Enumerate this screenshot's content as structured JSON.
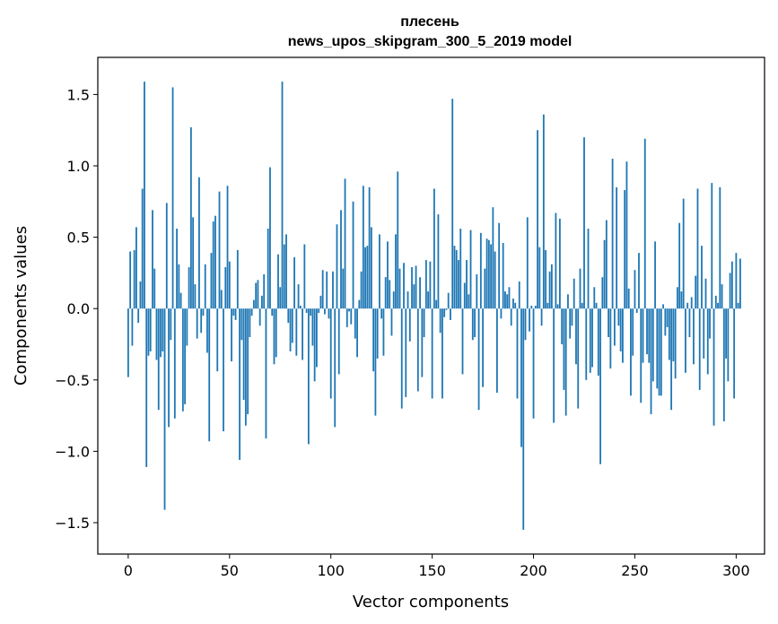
{
  "chart_data": {
    "type": "bar",
    "title": "плесень",
    "subtitle": "news_upos_skipgram_300_5_2019 model",
    "xlabel": "Vector components",
    "ylabel": "Components values",
    "xlim": [
      -15,
      314
    ],
    "ylim": [
      -1.72,
      1.76
    ],
    "x_ticks": [
      0,
      50,
      100,
      150,
      200,
      250,
      300
    ],
    "x_tick_labels": [
      "0",
      "50",
      "100",
      "150",
      "200",
      "250",
      "300"
    ],
    "y_ticks": [
      -1.5,
      -1.0,
      -0.5,
      0.0,
      0.5,
      1.0,
      1.5
    ],
    "y_tick_labels": [
      "−1.5",
      "−1.0",
      "−0.5",
      "0.0",
      "0.5",
      "1.0",
      "1.5"
    ],
    "grid": false,
    "bar_color": "#1f77b4",
    "values": [
      -0.48,
      0.4,
      -0.26,
      0.41,
      0.57,
      -0.1,
      0.19,
      0.84,
      1.59,
      -1.11,
      -0.33,
      -0.3,
      0.69,
      0.28,
      -0.36,
      -0.71,
      -0.34,
      -0.3,
      -1.41,
      0.74,
      -0.83,
      -0.22,
      1.55,
      -0.77,
      0.56,
      0.31,
      0.11,
      -0.72,
      -0.67,
      -0.26,
      0.29,
      1.27,
      0.64,
      0.17,
      -0.21,
      0.92,
      -0.17,
      -0.05,
      0.31,
      -0.31,
      -0.93,
      0.39,
      0.61,
      0.65,
      -0.44,
      0.82,
      0.13,
      -0.86,
      0.29,
      0.86,
      0.33,
      -0.37,
      -0.05,
      -0.08,
      0.41,
      -1.06,
      -0.22,
      -0.64,
      -0.82,
      -0.74,
      -0.2,
      -0.05,
      0.06,
      0.18,
      0.2,
      -0.12,
      0.09,
      0.24,
      -0.91,
      0.56,
      0.99,
      -0.05,
      -0.39,
      -0.34,
      0.38,
      0.15,
      1.59,
      0.45,
      0.52,
      -0.1,
      -0.3,
      -0.24,
      0.36,
      -0.33,
      0.17,
      0.02,
      -0.36,
      0.45,
      -0.03,
      -0.95,
      -0.05,
      -0.26,
      -0.51,
      -0.41,
      -0.03,
      0.09,
      0.27,
      -0.04,
      0.26,
      -0.07,
      -0.63,
      0.26,
      -0.83,
      0.59,
      -0.46,
      0.69,
      0.28,
      0.91,
      -0.13,
      -0.02,
      -0.11,
      0.75,
      -0.21,
      -0.34,
      0.06,
      0.26,
      0.86,
      0.43,
      0.44,
      0.85,
      0.57,
      -0.44,
      -0.75,
      -0.35,
      0.52,
      -0.07,
      -0.33,
      0.22,
      0.47,
      0.2,
      -0.19,
      0.12,
      0.52,
      0.96,
      0.28,
      -0.7,
      0.32,
      -0.62,
      0.12,
      -0.23,
      0.29,
      0.17,
      0.3,
      -0.58,
      0.22,
      -0.48,
      -0.2,
      0.34,
      0.12,
      0.33,
      -0.63,
      0.84,
      0.06,
      0.66,
      -0.17,
      -0.63,
      -0.06,
      -0.01,
      0.11,
      -0.08,
      1.47,
      0.44,
      0.41,
      0.34,
      0.56,
      -0.46,
      0.18,
      0.34,
      0.1,
      0.55,
      -0.22,
      -0.2,
      0.24,
      -0.71,
      0.53,
      -0.55,
      0.28,
      0.49,
      0.48,
      0.45,
      0.71,
      0.4,
      -0.59,
      0.6,
      -0.07,
      0.46,
      0.12,
      0.1,
      0.15,
      -0.12,
      0.07,
      0.04,
      -0.63,
      0.19,
      -0.97,
      -1.55,
      -0.22,
      0.64,
      -0.16,
      0.02,
      -0.77,
      0.02,
      1.25,
      0.43,
      -0.12,
      1.36,
      0.41,
      0.04,
      0.26,
      0.31,
      -0.8,
      0.67,
      0.03,
      0.63,
      -0.25,
      -0.57,
      -0.75,
      0.1,
      -0.21,
      -0.12,
      0.21,
      -0.39,
      -0.7,
      0.28,
      0.04,
      1.2,
      -0.5,
      0.56,
      -0.45,
      -0.41,
      0.15,
      0.04,
      -0.47,
      -1.09,
      0.22,
      0.48,
      0.62,
      -0.2,
      -0.42,
      1.05,
      -0.26,
      0.85,
      -0.12,
      -0.3,
      -0.38,
      0.83,
      1.03,
      0.14,
      -0.61,
      -0.33,
      0.27,
      -0.03,
      0.39,
      -0.66,
      -0.38,
      1.19,
      -0.32,
      -0.38,
      -0.74,
      -0.51,
      0.47,
      -0.56,
      -0.61,
      -0.61,
      0.03,
      -0.19,
      -0.13,
      -0.36,
      -0.71,
      -0.37,
      -0.49,
      0.15,
      0.6,
      0.12,
      0.77,
      -0.45,
      0.04,
      -0.2,
      0.08,
      -0.39,
      0.23,
      0.84,
      -0.57,
      0.44,
      -0.35,
      0.21,
      -0.46,
      -0.21,
      0.88,
      -0.82,
      0.09,
      0.04,
      0.85,
      0.17,
      -0.79,
      -0.35,
      -0.51,
      0.25,
      0.33,
      -0.63,
      0.39,
      0.04,
      0.35
    ]
  }
}
